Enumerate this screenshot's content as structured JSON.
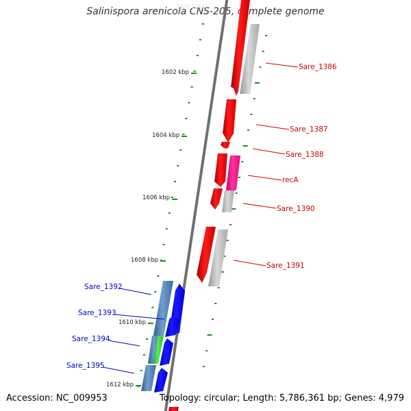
{
  "title": "Salinispora arenicola CNS-205, complete genome",
  "accession": "Accession: NC_009953",
  "topology": "Topology: circular; Length: 5,786,361 bp; Genes: 4,979",
  "colors": {
    "forward_label": "#cc0000",
    "reverse_label": "#0000cc",
    "backbone": "#777777",
    "tick": "#228b22",
    "cds_forward": "#ff0000",
    "cds_reverse": "#0000ee",
    "gene_forward": "#b0b0b0",
    "gene_reverse": "#4a7fb0",
    "reca": "#ff1493",
    "green_feature": "#33cc33"
  },
  "scale_labels": [
    "1602 kbp",
    "1604 kbp",
    "1606 kbp",
    "1608 kbp",
    "1610 kbp",
    "1612 kbp"
  ],
  "forward_genes": [
    "Sare_1386",
    "Sare_1387",
    "Sare_1388",
    "recA",
    "Sare_1390",
    "Sare_1391"
  ],
  "reverse_genes": [
    "Sare_1392",
    "Sare_1393",
    "Sare_1394",
    "Sare_1395"
  ]
}
